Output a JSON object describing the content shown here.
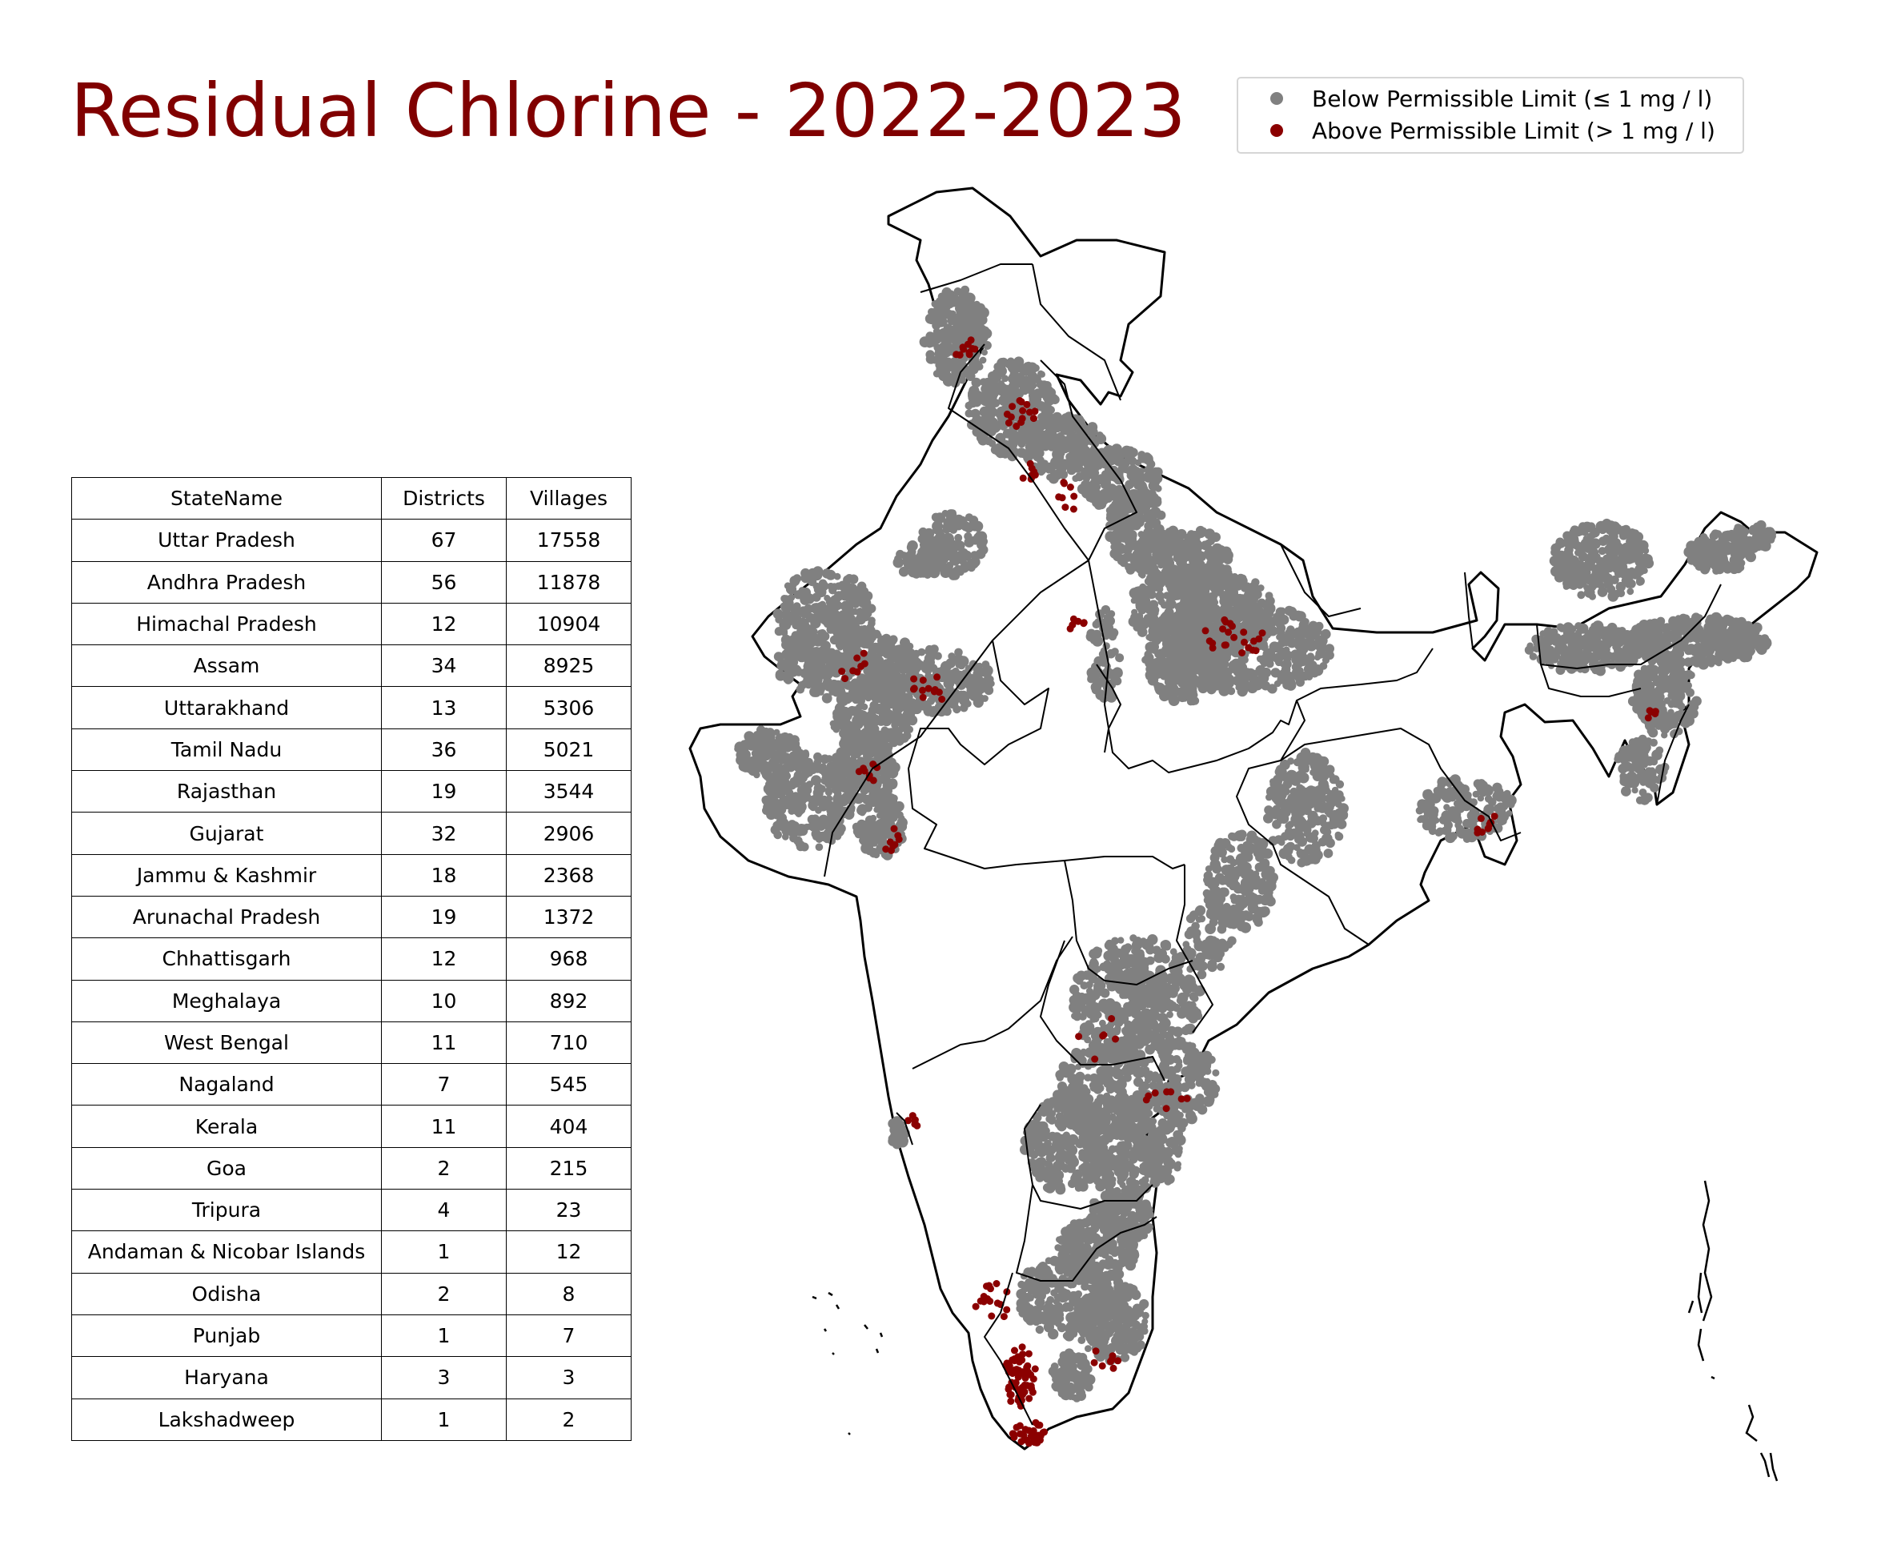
{
  "title": "Residual Chlorine - 2022-2023",
  "legend": {
    "items": [
      {
        "label": "Below Permissible Limit (≤ 1 mg / l)",
        "color": "#808080"
      },
      {
        "label": "Above Permissible Limit (> 1 mg / l)",
        "color": "#8b0000"
      }
    ]
  },
  "table": {
    "headers": [
      "StateName",
      "Districts",
      "Villages"
    ],
    "rows": [
      [
        "Uttar Pradesh",
        "67",
        "17558"
      ],
      [
        "Andhra Pradesh",
        "56",
        "11878"
      ],
      [
        "Himachal Pradesh",
        "12",
        "10904"
      ],
      [
        "Assam",
        "34",
        "8925"
      ],
      [
        "Uttarakhand",
        "13",
        "5306"
      ],
      [
        "Tamil Nadu",
        "36",
        "5021"
      ],
      [
        "Rajasthan",
        "19",
        "3544"
      ],
      [
        "Gujarat",
        "32",
        "2906"
      ],
      [
        "Jammu & Kashmir",
        "18",
        "2368"
      ],
      [
        "Arunachal Pradesh",
        "19",
        "1372"
      ],
      [
        "Chhattisgarh",
        "12",
        "968"
      ],
      [
        "Meghalaya",
        "10",
        "892"
      ],
      [
        "West Bengal",
        "11",
        "710"
      ],
      [
        "Nagaland",
        "7",
        "545"
      ],
      [
        "Kerala",
        "11",
        "404"
      ],
      [
        "Goa",
        "2",
        "215"
      ],
      [
        "Tripura",
        "4",
        "23"
      ],
      [
        "Andaman & Nicobar Islands",
        "1",
        "12"
      ],
      [
        "Odisha",
        "2",
        "8"
      ],
      [
        "Punjab",
        "1",
        "7"
      ],
      [
        "Haryana",
        "3",
        "3"
      ],
      [
        "Lakshadweep",
        "1",
        "2"
      ]
    ]
  },
  "map": {
    "region": "India",
    "sampled_states": [
      "Jammu & Kashmir",
      "Himachal Pradesh",
      "Uttarakhand",
      "Uttar Pradesh",
      "Rajasthan",
      "Gujarat",
      "Andhra Pradesh",
      "Tamil Nadu",
      "Kerala",
      "Goa",
      "Chhattisgarh",
      "West Bengal",
      "Assam",
      "Arunachal Pradesh",
      "Meghalaya",
      "Nagaland",
      "Tripura"
    ],
    "colors": {
      "below": "#808080",
      "above": "#8b0000",
      "boundary": "#000000"
    }
  }
}
